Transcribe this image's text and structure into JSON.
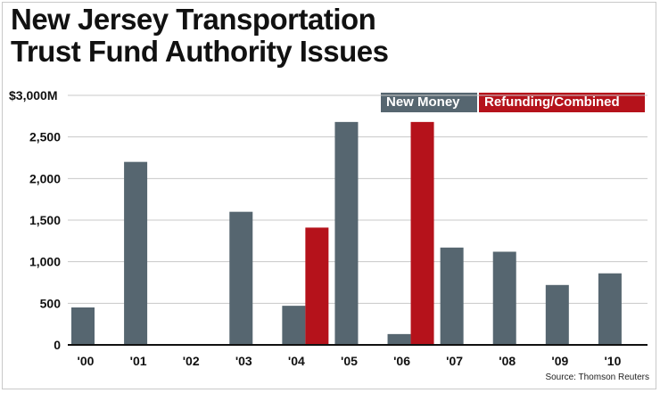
{
  "title_line1": "New Jersey Transportation",
  "title_line2": "Trust Fund Authority Issues",
  "source": "Source: Thomson Reuters",
  "colors": {
    "new_money": "#566670",
    "refunding": "#b5121b",
    "grid": "#c8c8c8",
    "axis": "#111111"
  },
  "chart_data": {
    "type": "bar",
    "title": "New Jersey Transportation Trust Fund Authority Issues",
    "categories": [
      "'00",
      "'01",
      "'02",
      "'03",
      "'04",
      "'05",
      "'06",
      "'07",
      "'08",
      "'09",
      "'10"
    ],
    "series": [
      {
        "name": "New Money",
        "values": [
          450,
          2200,
          0,
          1600,
          470,
          2680,
          130,
          1170,
          1120,
          720,
          860
        ]
      },
      {
        "name": "Refunding/Combined",
        "values": [
          0,
          0,
          0,
          0,
          1410,
          0,
          2680,
          0,
          0,
          0,
          0
        ]
      }
    ],
    "ylim": [
      0,
      3000
    ],
    "yticks": [
      0,
      500,
      1000,
      1500,
      2000,
      2500,
      3000
    ],
    "ytick_labels": [
      "0",
      "500",
      "1,000",
      "1,500",
      "2,000",
      "2,500",
      "$3,000M"
    ],
    "legend": "top-right",
    "grid": true
  }
}
